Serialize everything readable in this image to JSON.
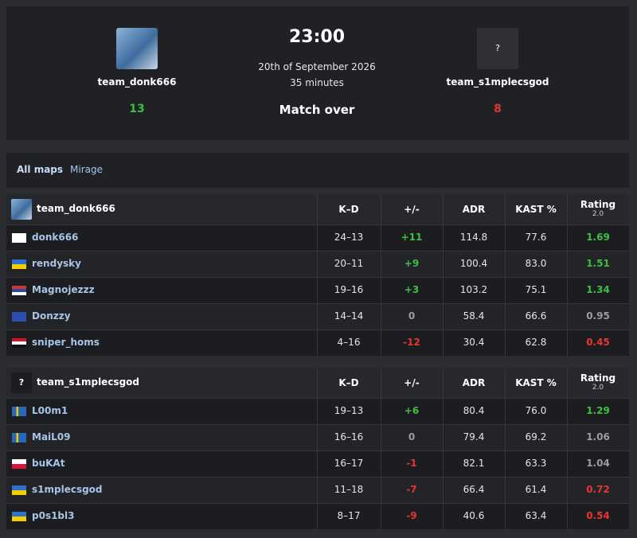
{
  "match": {
    "time": "23:00",
    "date": "20th of September 2026",
    "duration": "35 minutes",
    "status": "Match over"
  },
  "teams": [
    {
      "name": "team_donk666",
      "score": 13
    },
    {
      "name": "team_s1mplecsgod",
      "score": 8,
      "logo_text": "?"
    }
  ],
  "maps": [
    "All maps",
    "Mirage"
  ],
  "columns": [
    "K–D",
    "+/-",
    "ADR",
    "KAST %",
    "Rating"
  ],
  "rating_version": "2.0",
  "tables": [
    {
      "rows": [
        [
          "donk666",
          "24–13",
          "+11",
          "114.8",
          "77.6",
          "1.69"
        ],
        [
          "rendysky",
          "20–11",
          "+9",
          "100.4",
          "83.0",
          "1.51"
        ],
        [
          "Magnojezzz",
          "19–16",
          "+3",
          "103.2",
          "75.1",
          "1.34"
        ],
        [
          "Donzzy",
          "14–14",
          "0",
          "58.4",
          "66.6",
          "0.95"
        ],
        [
          "sniper_homs",
          "4–16",
          "-12",
          "30.4",
          "62.8",
          "0.45"
        ]
      ]
    },
    {
      "rows": [
        [
          "L00m1",
          "19–13",
          "+6",
          "80.4",
          "76.0",
          "1.29"
        ],
        [
          "MaiL09",
          "16–16",
          "0",
          "79.4",
          "69.2",
          "1.06"
        ],
        [
          "buKAt",
          "16–17",
          "-1",
          "82.1",
          "63.3",
          "1.04"
        ],
        [
          "s1mplecsgod",
          "11–18",
          "-7",
          "66.4",
          "61.4",
          "0.72"
        ],
        [
          "p0s1bl3",
          "8–17",
          "-9",
          "40.6",
          "63.4",
          "0.54"
        ]
      ]
    }
  ]
}
